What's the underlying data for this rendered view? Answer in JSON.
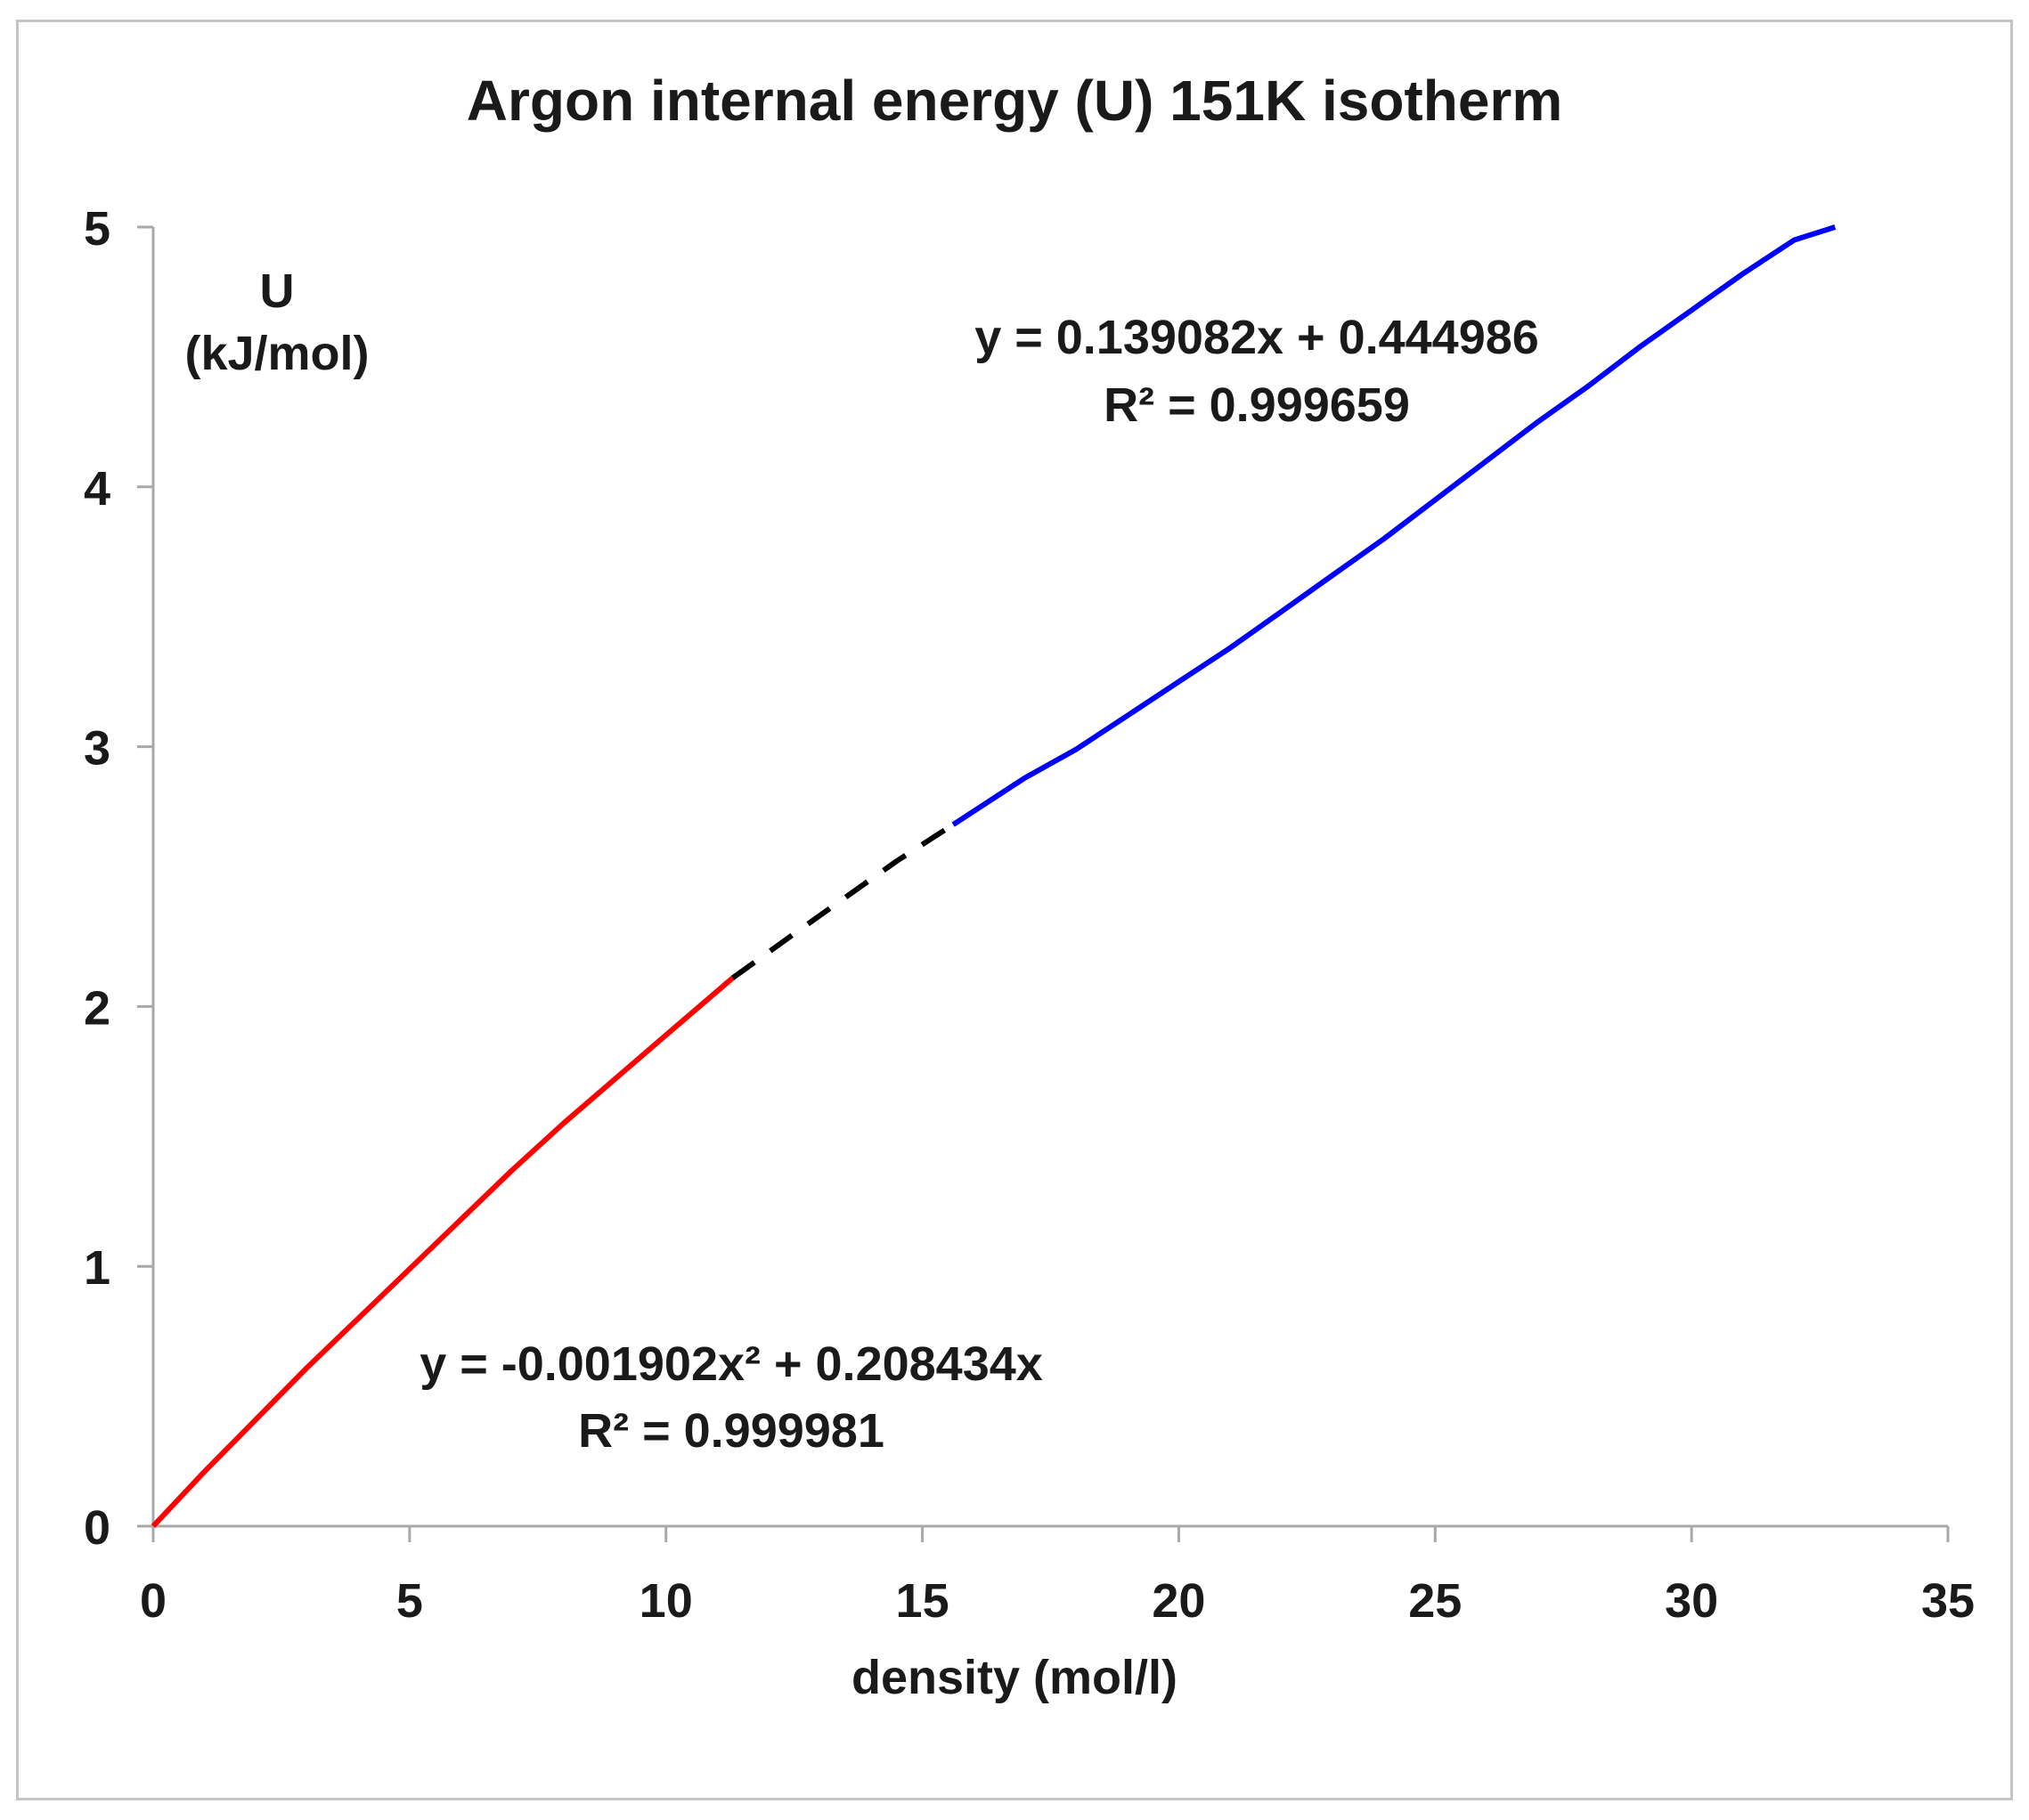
{
  "chart_data": {
    "type": "line",
    "title": "Argon internal energy (U) 151K isotherm",
    "xlabel": "density (mol/l)",
    "ylabel_line1": "U",
    "ylabel_line2": "(kJ/mol)",
    "xlim": [
      0,
      35
    ],
    "ylim": [
      0,
      5
    ],
    "xticks": [
      "0",
      "5",
      "10",
      "15",
      "20",
      "25",
      "30",
      "35"
    ],
    "yticks": [
      "0",
      "1",
      "2",
      "3",
      "4",
      "5"
    ],
    "grid": false,
    "series": [
      {
        "color": "#ff0000",
        "style": "solid",
        "x": [
          0,
          1,
          2,
          3,
          4,
          5,
          6,
          7,
          8,
          9,
          10,
          11.3
        ],
        "y": [
          0,
          0.21,
          0.41,
          0.61,
          0.8,
          0.99,
          1.18,
          1.37,
          1.55,
          1.72,
          1.89,
          2.11
        ]
      },
      {
        "color": "#000000",
        "style": "dashed",
        "x": [
          11.3,
          12.5,
          13.5,
          14.5,
          15.6
        ],
        "y": [
          2.11,
          2.28,
          2.42,
          2.56,
          2.7
        ]
      },
      {
        "color": "#0000ff",
        "style": "solid",
        "x": [
          15.6,
          17,
          18,
          19,
          20,
          21,
          22,
          23,
          24,
          25,
          26,
          27,
          28,
          29,
          30,
          31,
          32,
          32.8
        ],
        "y": [
          2.7,
          2.88,
          2.99,
          3.12,
          3.25,
          3.38,
          3.52,
          3.66,
          3.8,
          3.95,
          4.1,
          4.25,
          4.39,
          4.54,
          4.68,
          4.82,
          4.95,
          5.0
        ]
      }
    ],
    "annotations": [
      {
        "id": "fit_high",
        "line1": "y = 0.139082x + 0.444986",
        "line2": "R² = 0.999659"
      },
      {
        "id": "fit_low",
        "line1": "y = -0.001902x² + 0.208434x",
        "line2": "R² = 0.999981"
      }
    ]
  }
}
